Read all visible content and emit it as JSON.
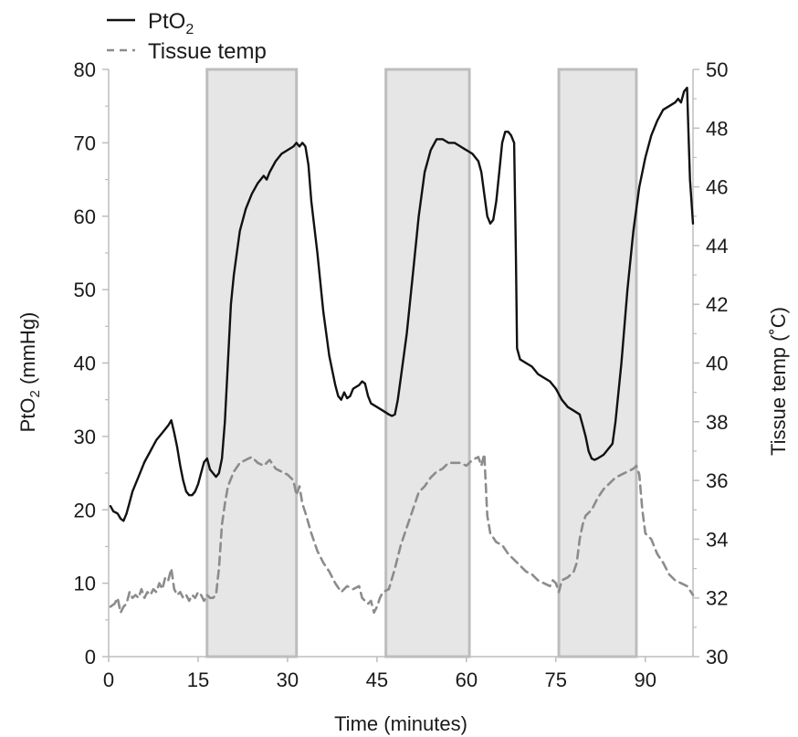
{
  "chart_data": {
    "type": "line",
    "xlabel": "Time (minutes)",
    "ylabel_left": {
      "main": "PtO",
      "sub": "2",
      "rest": " (mmHg)"
    },
    "ylabel_right": "Tissue temp (˚C)",
    "xlim": [
      0,
      98
    ],
    "ylim_left": [
      0,
      80
    ],
    "ylim_right": [
      30,
      50
    ],
    "x_ticks": [
      0,
      15,
      30,
      45,
      60,
      75,
      90
    ],
    "y_ticks_left": [
      0,
      10,
      20,
      30,
      40,
      50,
      60,
      70,
      80
    ],
    "y_ticks_right": [
      30,
      32,
      34,
      36,
      38,
      40,
      42,
      44,
      46,
      48,
      50
    ],
    "grid": false,
    "legend_position": "top-left",
    "heating_intervals": [
      [
        16.5,
        31.5
      ],
      [
        46.5,
        60.5
      ],
      [
        75.5,
        88.5
      ]
    ],
    "series": [
      {
        "name": {
          "main": "PtO",
          "sub": "2"
        },
        "axis": "left",
        "style": "solid",
        "color": "#111111",
        "points": [
          [
            0.3,
            20.5
          ],
          [
            0.8,
            19.8
          ],
          [
            1.5,
            19.5
          ],
          [
            2,
            18.8
          ],
          [
            2.5,
            18.5
          ],
          [
            3,
            19.5
          ],
          [
            3.5,
            21
          ],
          [
            4,
            22.5
          ],
          [
            5,
            24.5
          ],
          [
            6,
            26.5
          ],
          [
            7,
            28
          ],
          [
            8,
            29.5
          ],
          [
            9,
            30.5
          ],
          [
            10,
            31.5
          ],
          [
            10.5,
            32.2
          ],
          [
            11,
            30.5
          ],
          [
            11.5,
            28.5
          ],
          [
            12,
            26
          ],
          [
            12.5,
            24
          ],
          [
            13,
            22.5
          ],
          [
            13.5,
            22
          ],
          [
            14,
            22
          ],
          [
            14.5,
            22.5
          ],
          [
            15,
            23.5
          ],
          [
            15.5,
            25
          ],
          [
            16,
            26.5
          ],
          [
            16.5,
            27
          ],
          [
            17,
            25.5
          ],
          [
            17.5,
            25
          ],
          [
            18,
            24.5
          ],
          [
            18.5,
            25
          ],
          [
            19,
            27
          ],
          [
            19.5,
            32
          ],
          [
            20,
            40
          ],
          [
            20.5,
            48
          ],
          [
            21,
            52
          ],
          [
            21.5,
            55
          ],
          [
            22,
            58
          ],
          [
            23,
            61
          ],
          [
            24,
            63
          ],
          [
            25,
            64.5
          ],
          [
            26,
            65.5
          ],
          [
            26.5,
            65
          ],
          [
            27,
            66
          ],
          [
            28,
            67.5
          ],
          [
            29,
            68.5
          ],
          [
            30,
            69
          ],
          [
            31,
            69.5
          ],
          [
            31.5,
            70
          ],
          [
            32,
            69.5
          ],
          [
            32.5,
            70
          ],
          [
            33,
            69.5
          ],
          [
            33.5,
            67
          ],
          [
            34,
            62
          ],
          [
            35,
            55
          ],
          [
            36,
            47
          ],
          [
            37,
            41
          ],
          [
            38,
            37
          ],
          [
            38.5,
            35.5
          ],
          [
            39,
            35
          ],
          [
            39.5,
            36
          ],
          [
            40,
            35.2
          ],
          [
            40.5,
            35.5
          ],
          [
            41,
            36.5
          ],
          [
            42,
            37
          ],
          [
            42.5,
            37.5
          ],
          [
            43,
            37.2
          ],
          [
            43.5,
            35.5
          ],
          [
            44,
            34.5
          ],
          [
            45,
            34
          ],
          [
            46,
            33.5
          ],
          [
            47,
            33
          ],
          [
            47.5,
            32.8
          ],
          [
            48,
            33
          ],
          [
            48.5,
            35
          ],
          [
            49,
            38
          ],
          [
            50,
            44
          ],
          [
            51,
            52
          ],
          [
            52,
            60
          ],
          [
            53,
            66
          ],
          [
            54,
            69
          ],
          [
            55,
            70.5
          ],
          [
            56,
            70.5
          ],
          [
            57,
            70
          ],
          [
            58,
            70
          ],
          [
            59,
            69.5
          ],
          [
            60,
            69
          ],
          [
            61,
            68.5
          ],
          [
            62,
            67.5
          ],
          [
            62.5,
            66
          ],
          [
            63,
            63
          ],
          [
            63.5,
            60
          ],
          [
            64,
            59
          ],
          [
            64.5,
            59.5
          ],
          [
            65,
            62
          ],
          [
            65.5,
            66
          ],
          [
            66,
            70
          ],
          [
            66.5,
            71.5
          ],
          [
            67,
            71.5
          ],
          [
            67.5,
            71
          ],
          [
            68,
            70
          ],
          [
            68.3,
            55
          ],
          [
            68.5,
            42
          ],
          [
            69,
            40.5
          ],
          [
            70,
            40
          ],
          [
            71,
            39.5
          ],
          [
            72,
            38.5
          ],
          [
            73,
            38
          ],
          [
            74,
            37.5
          ],
          [
            75,
            36.5
          ],
          [
            76,
            35
          ],
          [
            77,
            34
          ],
          [
            78,
            33.5
          ],
          [
            79,
            33
          ],
          [
            79.5,
            31.5
          ],
          [
            80,
            30
          ],
          [
            80.5,
            28
          ],
          [
            81,
            27
          ],
          [
            81.5,
            26.8
          ],
          [
            82,
            27
          ],
          [
            83,
            27.5
          ],
          [
            84,
            28.5
          ],
          [
            84.5,
            29
          ],
          [
            85,
            32
          ],
          [
            86,
            40
          ],
          [
            87,
            50
          ],
          [
            88,
            58
          ],
          [
            89,
            64
          ],
          [
            90,
            68
          ],
          [
            91,
            71
          ],
          [
            92,
            73
          ],
          [
            93,
            74.5
          ],
          [
            94,
            75
          ],
          [
            95,
            75.5
          ],
          [
            95.5,
            76
          ],
          [
            96,
            75.5
          ],
          [
            96.5,
            77
          ],
          [
            97,
            77.5
          ],
          [
            97.3,
            70
          ],
          [
            97.5,
            65
          ],
          [
            98,
            59
          ]
        ]
      },
      {
        "name": "Tissue temp",
        "axis": "right",
        "style": "dashed",
        "color": "#8c8c8c",
        "points": [
          [
            0.3,
            31.7
          ],
          [
            1,
            31.8
          ],
          [
            1.5,
            32
          ],
          [
            2,
            31.5
          ],
          [
            2.5,
            31.7
          ],
          [
            3,
            31.8
          ],
          [
            3.5,
            32.2
          ],
          [
            4,
            32
          ],
          [
            4.5,
            32.1
          ],
          [
            5,
            32
          ],
          [
            5.5,
            32.3
          ],
          [
            6,
            32
          ],
          [
            6.5,
            32.2
          ],
          [
            7,
            32.1
          ],
          [
            7.5,
            32.3
          ],
          [
            8,
            32.2
          ],
          [
            8.5,
            32.5
          ],
          [
            9,
            32.3
          ],
          [
            9.5,
            32.7
          ],
          [
            10,
            32.6
          ],
          [
            10.5,
            33
          ],
          [
            11,
            32.3
          ],
          [
            11.5,
            32.1
          ],
          [
            12,
            32.2
          ],
          [
            12.5,
            32
          ],
          [
            13,
            32.1
          ],
          [
            13.5,
            31.9
          ],
          [
            14,
            32.1
          ],
          [
            14.5,
            32
          ],
          [
            15,
            32.2
          ],
          [
            15.5,
            32.1
          ],
          [
            16,
            31.9
          ],
          [
            16.5,
            32.1
          ],
          [
            17,
            32
          ],
          [
            17.5,
            32
          ],
          [
            18,
            32.1
          ],
          [
            18.5,
            33
          ],
          [
            19,
            34.5
          ],
          [
            19.5,
            35.2
          ],
          [
            20,
            35.8
          ],
          [
            21,
            36.3
          ],
          [
            22,
            36.6
          ],
          [
            23,
            36.7
          ],
          [
            24,
            36.8
          ],
          [
            25,
            36.6
          ],
          [
            26,
            36.5
          ],
          [
            27,
            36.7
          ],
          [
            28,
            36.4
          ],
          [
            29,
            36.3
          ],
          [
            30,
            36.2
          ],
          [
            31,
            36
          ],
          [
            31.5,
            35.5
          ],
          [
            32,
            35.8
          ],
          [
            32.5,
            35.2
          ],
          [
            33,
            34.9
          ],
          [
            34,
            34.2
          ],
          [
            35,
            33.6
          ],
          [
            36,
            33.2
          ],
          [
            37,
            32.9
          ],
          [
            38,
            32.5
          ],
          [
            39,
            32.2
          ],
          [
            40,
            32.4
          ],
          [
            41,
            32.3
          ],
          [
            42,
            32.4
          ],
          [
            42.5,
            32
          ],
          [
            43,
            31.9
          ],
          [
            43.5,
            31.8
          ],
          [
            44,
            31.9
          ],
          [
            44.5,
            31.5
          ],
          [
            45,
            31.7
          ],
          [
            45.5,
            32
          ],
          [
            46,
            32.2
          ],
          [
            47,
            32.3
          ],
          [
            48,
            33
          ],
          [
            49,
            33.8
          ],
          [
            50,
            34.4
          ],
          [
            51,
            35
          ],
          [
            52,
            35.6
          ],
          [
            53,
            35.8
          ],
          [
            54,
            36.1
          ],
          [
            55,
            36.3
          ],
          [
            56,
            36.4
          ],
          [
            57,
            36.6
          ],
          [
            58,
            36.6
          ],
          [
            59,
            36.6
          ],
          [
            60,
            36.5
          ],
          [
            61,
            36.7
          ],
          [
            62,
            36.8
          ],
          [
            62.5,
            36.5
          ],
          [
            63,
            36.9
          ],
          [
            63.5,
            34.8
          ],
          [
            64,
            34.2
          ],
          [
            65,
            33.9
          ],
          [
            66,
            33.8
          ],
          [
            67,
            33.5
          ],
          [
            68,
            33.3
          ],
          [
            69,
            33.1
          ],
          [
            70,
            32.9
          ],
          [
            71,
            32.8
          ],
          [
            72,
            32.6
          ],
          [
            73,
            32.5
          ],
          [
            74,
            32.4
          ],
          [
            74.5,
            32.6
          ],
          [
            75,
            32.5
          ],
          [
            75.5,
            32.2
          ],
          [
            76,
            32.6
          ],
          [
            77,
            32.7
          ],
          [
            78,
            32.9
          ],
          [
            78.5,
            33.2
          ],
          [
            79,
            34
          ],
          [
            79.5,
            34.5
          ],
          [
            80,
            34.8
          ],
          [
            81,
            35
          ],
          [
            82,
            35.4
          ],
          [
            83,
            35.7
          ],
          [
            84,
            35.9
          ],
          [
            85,
            36.1
          ],
          [
            86,
            36.2
          ],
          [
            87,
            36.3
          ],
          [
            88,
            36.4
          ],
          [
            88.5,
            36.5
          ],
          [
            89,
            36.2
          ],
          [
            89.5,
            35
          ],
          [
            90,
            34.2
          ],
          [
            91,
            34
          ],
          [
            92,
            33.5
          ],
          [
            93,
            33.2
          ],
          [
            94,
            32.8
          ],
          [
            95,
            32.6
          ],
          [
            96,
            32.5
          ],
          [
            97,
            32.4
          ],
          [
            98,
            32.1
          ]
        ]
      }
    ]
  }
}
